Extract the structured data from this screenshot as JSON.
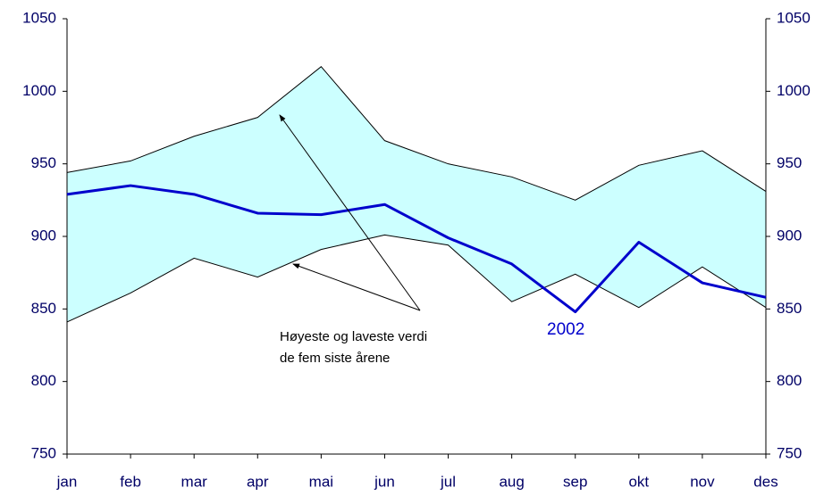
{
  "chart_data": {
    "type": "line",
    "categories": [
      "jan",
      "feb",
      "mar",
      "apr",
      "mai",
      "jun",
      "jul",
      "aug",
      "sep",
      "okt",
      "nov",
      "des"
    ],
    "series": [
      {
        "name": "2002",
        "color": "#0000cc",
        "values": [
          929,
          935,
          929,
          916,
          915,
          922,
          899,
          881,
          848,
          896,
          868,
          858
        ]
      }
    ],
    "band": {
      "color": "#ccffff",
      "upper": [
        944,
        952,
        969,
        982,
        1017,
        966,
        950,
        941,
        925,
        949,
        959,
        931
      ],
      "lower": [
        841,
        861,
        885,
        872,
        891,
        901,
        894,
        855,
        874,
        851,
        879,
        851
      ]
    },
    "annotation": [
      "Høyeste og laveste verdi",
      "de fem siste årene"
    ],
    "ylim": [
      750,
      1050
    ],
    "yticks": [
      750,
      800,
      850,
      900,
      950,
      1000,
      1050
    ],
    "y2lim": [
      750,
      1050
    ],
    "y2ticks": [
      750,
      800,
      850,
      900,
      950,
      1000,
      1050
    ]
  }
}
